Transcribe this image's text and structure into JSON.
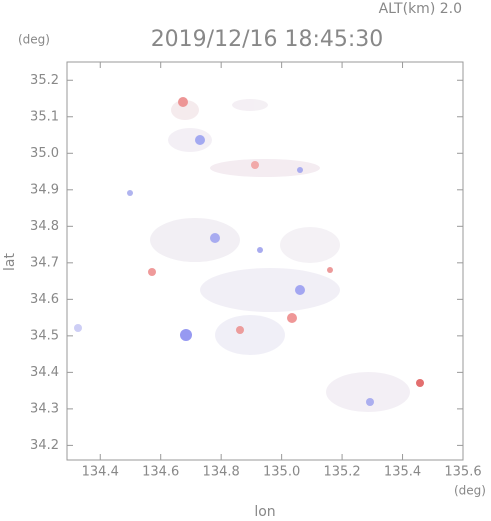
{
  "header": {
    "altitude": "ALT(km) 2.0",
    "unit_top": "(deg)",
    "timestamp": "2019/12/16 18:45:30"
  },
  "axes": {
    "x_label": "lon",
    "x_unit": "(deg)",
    "y_label": "lat",
    "xlim": [
      134.29,
      135.6
    ],
    "ylim": [
      34.16,
      35.25
    ],
    "xticks": [
      134.4,
      134.6,
      134.8,
      {
        "value": 135,
        "label": "135.0"
      },
      135.2,
      135.4,
      135.6
    ],
    "yticks": [
      34.2,
      34.3,
      34.4,
      34.5,
      34.6,
      34.7,
      34.8,
      34.9,
      {
        "value": 35,
        "label": "35.0"
      },
      35.1,
      35.2
    ]
  }
}
